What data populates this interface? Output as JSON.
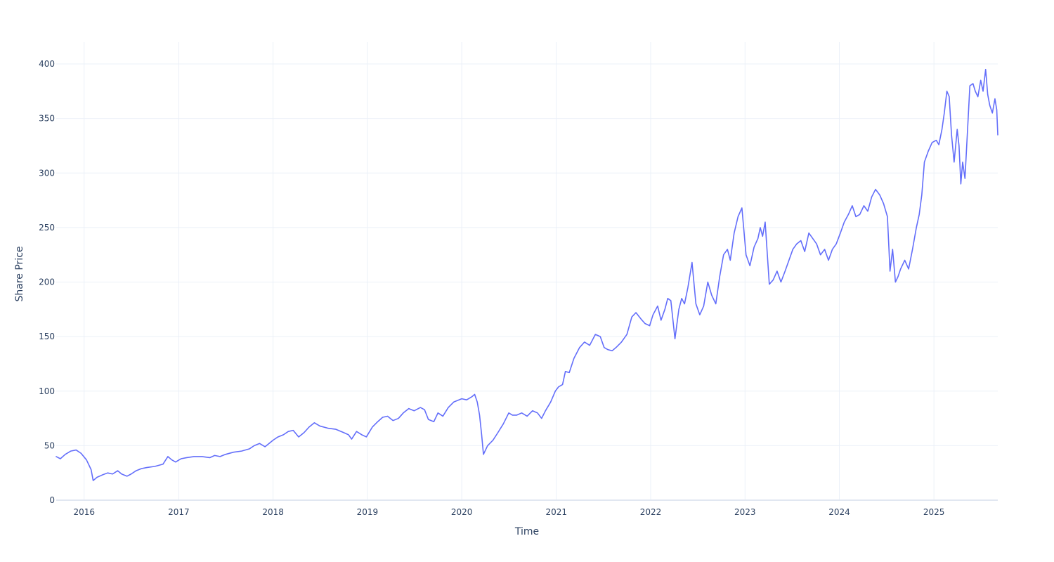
{
  "chart_data": {
    "type": "line",
    "title": "",
    "xlabel": "Time",
    "ylabel": "Share Price",
    "x_axis_type": "date",
    "xlim": [
      "2015-09-15",
      "2025-09-05"
    ],
    "ylim": [
      0,
      420
    ],
    "x_ticks": [
      {
        "label": "2016",
        "date": "2016-01-01"
      },
      {
        "label": "2017",
        "date": "2017-01-01"
      },
      {
        "label": "2018",
        "date": "2018-01-01"
      },
      {
        "label": "2019",
        "date": "2019-01-01"
      },
      {
        "label": "2020",
        "date": "2020-01-01"
      },
      {
        "label": "2021",
        "date": "2021-01-01"
      },
      {
        "label": "2022",
        "date": "2022-01-01"
      },
      {
        "label": "2023",
        "date": "2023-01-01"
      },
      {
        "label": "2024",
        "date": "2024-01-01"
      },
      {
        "label": "2025",
        "date": "2025-01-01"
      }
    ],
    "y_ticks": [
      {
        "label": "0",
        "value": 0
      },
      {
        "label": "50",
        "value": 50
      },
      {
        "label": "100",
        "value": 100
      },
      {
        "label": "150",
        "value": 150
      },
      {
        "label": "200",
        "value": 200
      },
      {
        "label": "250",
        "value": 250
      },
      {
        "label": "300",
        "value": 300
      },
      {
        "label": "350",
        "value": 350
      },
      {
        "label": "400",
        "value": 400
      }
    ],
    "grid": true,
    "legend": false,
    "series": [
      {
        "color": "#636efa",
        "x": [
          "2015-09-15",
          "2015-10-01",
          "2015-10-20",
          "2015-11-10",
          "2015-12-01",
          "2015-12-20",
          "2016-01-10",
          "2016-01-28",
          "2016-02-05",
          "2016-02-20",
          "2016-03-10",
          "2016-04-01",
          "2016-04-20",
          "2016-05-10",
          "2016-05-25",
          "2016-06-15",
          "2016-07-01",
          "2016-07-20",
          "2016-08-10",
          "2016-09-01",
          "2016-10-01",
          "2016-11-01",
          "2016-11-20",
          "2016-12-05",
          "2016-12-20",
          "2017-01-10",
          "2017-02-01",
          "2017-03-01",
          "2017-04-01",
          "2017-05-01",
          "2017-05-20",
          "2017-06-10",
          "2017-07-01",
          "2017-08-01",
          "2017-09-01",
          "2017-10-01",
          "2017-10-20",
          "2017-11-10",
          "2017-12-01",
          "2018-01-01",
          "2018-01-20",
          "2018-02-10",
          "2018-03-01",
          "2018-03-20",
          "2018-04-10",
          "2018-05-01",
          "2018-05-20",
          "2018-06-10",
          "2018-07-01",
          "2018-08-01",
          "2018-09-01",
          "2018-10-01",
          "2018-10-20",
          "2018-11-01",
          "2018-11-20",
          "2018-12-10",
          "2018-12-28",
          "2019-01-20",
          "2019-02-10",
          "2019-03-01",
          "2019-03-20",
          "2019-04-10",
          "2019-05-01",
          "2019-05-20",
          "2019-06-10",
          "2019-07-01",
          "2019-07-25",
          "2019-08-10",
          "2019-08-25",
          "2019-09-15",
          "2019-10-01",
          "2019-10-20",
          "2019-11-10",
          "2019-12-01",
          "2020-01-01",
          "2020-01-20",
          "2020-02-10",
          "2020-02-20",
          "2020-03-01",
          "2020-03-10",
          "2020-03-18",
          "2020-03-25",
          "2020-04-10",
          "2020-05-01",
          "2020-05-20",
          "2020-06-10",
          "2020-07-01",
          "2020-07-15",
          "2020-08-01",
          "2020-08-20",
          "2020-09-10",
          "2020-10-01",
          "2020-10-20",
          "2020-11-05",
          "2020-11-20",
          "2020-12-10",
          "2020-12-28",
          "2021-01-10",
          "2021-01-25",
          "2021-02-05",
          "2021-02-20",
          "2021-03-10",
          "2021-04-01",
          "2021-04-20",
          "2021-05-10",
          "2021-06-01",
          "2021-06-20",
          "2021-07-05",
          "2021-07-20",
          "2021-08-05",
          "2021-08-20",
          "2021-09-10",
          "2021-10-01",
          "2021-10-20",
          "2021-11-05",
          "2021-11-25",
          "2021-12-10",
          "2021-12-28",
          "2022-01-10",
          "2022-01-28",
          "2022-02-10",
          "2022-02-25",
          "2022-03-08",
          "2022-03-20",
          "2022-04-05",
          "2022-04-20",
          "2022-05-01",
          "2022-05-12",
          "2022-05-25",
          "2022-06-10",
          "2022-06-25",
          "2022-07-10",
          "2022-07-25",
          "2022-08-10",
          "2022-08-25",
          "2022-09-10",
          "2022-09-25",
          "2022-10-10",
          "2022-10-25",
          "2022-11-05",
          "2022-11-20",
          "2022-12-05",
          "2022-12-20",
          "2023-01-05",
          "2023-01-20",
          "2023-02-05",
          "2023-02-20",
          "2023-03-01",
          "2023-03-10",
          "2023-03-20",
          "2023-04-05",
          "2023-04-20",
          "2023-05-05",
          "2023-05-20",
          "2023-06-05",
          "2023-06-20",
          "2023-07-05",
          "2023-07-20",
          "2023-08-05",
          "2023-08-20",
          "2023-09-05",
          "2023-09-20",
          "2023-10-05",
          "2023-10-20",
          "2023-11-05",
          "2023-11-20",
          "2023-12-05",
          "2023-12-20",
          "2024-01-05",
          "2024-01-20",
          "2024-02-05",
          "2024-02-20",
          "2024-03-05",
          "2024-03-20",
          "2024-04-05",
          "2024-04-20",
          "2024-05-05",
          "2024-05-20",
          "2024-06-05",
          "2024-06-20",
          "2024-07-05",
          "2024-07-15",
          "2024-07-25",
          "2024-08-05",
          "2024-08-15",
          "2024-08-25",
          "2024-09-10",
          "2024-09-25",
          "2024-10-10",
          "2024-10-25",
          "2024-11-05",
          "2024-11-15",
          "2024-11-25",
          "2024-12-10",
          "2024-12-25",
          "2025-01-10",
          "2025-01-20",
          "2025-02-01",
          "2025-02-10",
          "2025-02-20",
          "2025-03-01",
          "2025-03-10",
          "2025-03-20",
          "2025-04-01",
          "2025-04-08",
          "2025-04-15",
          "2025-04-22",
          "2025-05-01",
          "2025-05-10",
          "2025-05-20",
          "2025-06-01",
          "2025-06-10",
          "2025-06-20",
          "2025-07-01",
          "2025-07-10",
          "2025-07-20",
          "2025-07-28",
          "2025-08-05",
          "2025-08-15",
          "2025-08-25",
          "2025-09-01",
          "2025-09-05"
        ],
        "y": [
          40,
          38,
          42,
          45,
          46,
          43,
          37,
          28,
          18,
          21,
          23,
          25,
          24,
          27,
          24,
          22,
          24,
          27,
          29,
          30,
          31,
          33,
          40,
          37,
          35,
          38,
          39,
          40,
          40,
          39,
          41,
          40,
          42,
          44,
          45,
          47,
          50,
          52,
          49,
          55,
          58,
          60,
          63,
          64,
          58,
          62,
          67,
          71,
          68,
          66,
          65,
          62,
          60,
          56,
          63,
          60,
          58,
          67,
          72,
          76,
          77,
          73,
          75,
          80,
          84,
          82,
          85,
          83,
          74,
          72,
          80,
          77,
          85,
          90,
          93,
          92,
          95,
          97,
          90,
          78,
          60,
          42,
          50,
          55,
          62,
          70,
          80,
          78,
          78,
          80,
          77,
          82,
          80,
          75,
          82,
          90,
          100,
          104,
          106,
          118,
          117,
          130,
          140,
          145,
          142,
          152,
          150,
          140,
          138,
          137,
          140,
          145,
          152,
          168,
          172,
          166,
          162,
          160,
          170,
          178,
          165,
          175,
          185,
          183,
          148,
          175,
          185,
          180,
          195,
          218,
          180,
          170,
          178,
          200,
          188,
          180,
          205,
          225,
          230,
          220,
          245,
          260,
          268,
          225,
          215,
          232,
          240,
          250,
          242,
          255,
          198,
          202,
          210,
          200,
          210,
          220,
          230,
          235,
          238,
          228,
          245,
          240,
          235,
          225,
          230,
          220,
          230,
          235,
          245,
          255,
          262,
          270,
          260,
          262,
          270,
          265,
          278,
          285,
          280,
          272,
          260,
          210,
          230,
          200,
          205,
          212,
          220,
          212,
          230,
          250,
          262,
          280,
          310,
          320,
          328,
          330,
          326,
          340,
          355,
          375,
          370,
          335,
          310,
          340,
          325,
          290,
          310,
          295,
          335,
          380,
          382,
          375,
          370,
          385,
          375,
          395,
          372,
          362,
          355,
          368,
          358,
          335
        ]
      }
    ]
  }
}
